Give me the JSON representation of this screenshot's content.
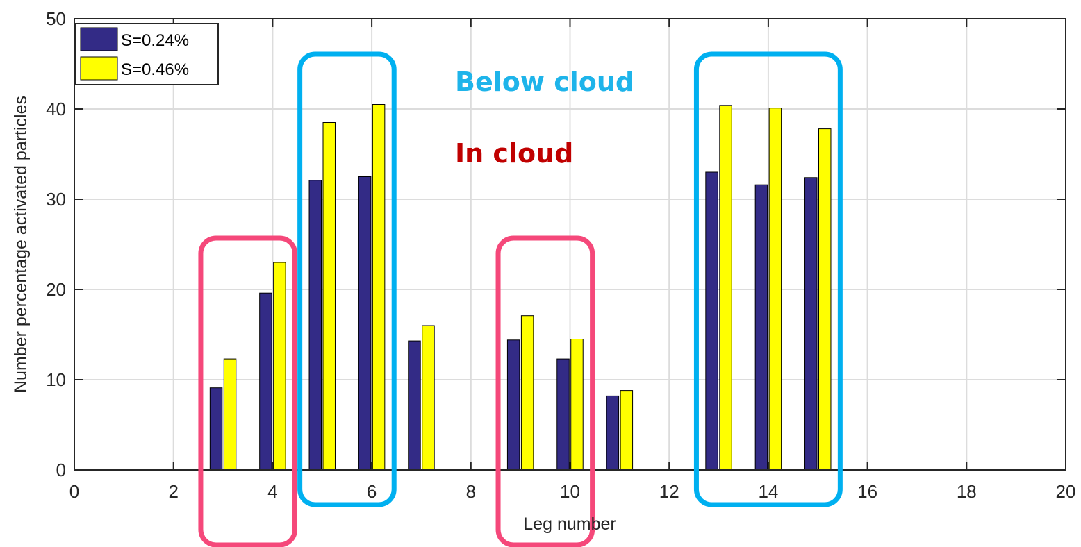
{
  "chart_data": {
    "type": "bar",
    "xlabel": "Leg number",
    "ylabel": "Number percentage activated particles",
    "xlim": [
      0,
      20
    ],
    "ylim": [
      0,
      50
    ],
    "xticks": [
      0,
      2,
      4,
      6,
      8,
      10,
      12,
      14,
      16,
      18,
      20
    ],
    "yticks": [
      0,
      10,
      20,
      30,
      40,
      50
    ],
    "grid": true,
    "legend_position": "top-left",
    "x": [
      3,
      4,
      5,
      6,
      7,
      9,
      10,
      11,
      13,
      14,
      15
    ],
    "series": [
      {
        "name": "S=0.24%",
        "color": "#332b86",
        "values": [
          9.1,
          19.6,
          32.1,
          32.5,
          14.3,
          14.4,
          12.3,
          8.2,
          33.0,
          31.6,
          32.4
        ]
      },
      {
        "name": "S=0.46%",
        "color": "#ffff00",
        "values": [
          12.3,
          23.0,
          38.5,
          40.5,
          16.0,
          17.1,
          14.5,
          8.8,
          40.4,
          40.1,
          37.8
        ]
      }
    ],
    "annotations": [
      {
        "text": "Below cloud",
        "color": "#1eb4ea"
      },
      {
        "text": "In cloud",
        "color": "#c00000"
      }
    ],
    "highlight_boxes": [
      {
        "category": "In cloud",
        "legs": [
          3,
          4
        ],
        "color": "#f5487a"
      },
      {
        "category": "Below cloud",
        "legs": [
          5,
          6
        ],
        "color": "#00b0f0"
      },
      {
        "category": "In cloud",
        "legs": [
          9,
          10
        ],
        "color": "#f5487a"
      },
      {
        "category": "Below cloud",
        "legs": [
          13,
          14,
          15
        ],
        "color": "#00b0f0"
      }
    ]
  }
}
